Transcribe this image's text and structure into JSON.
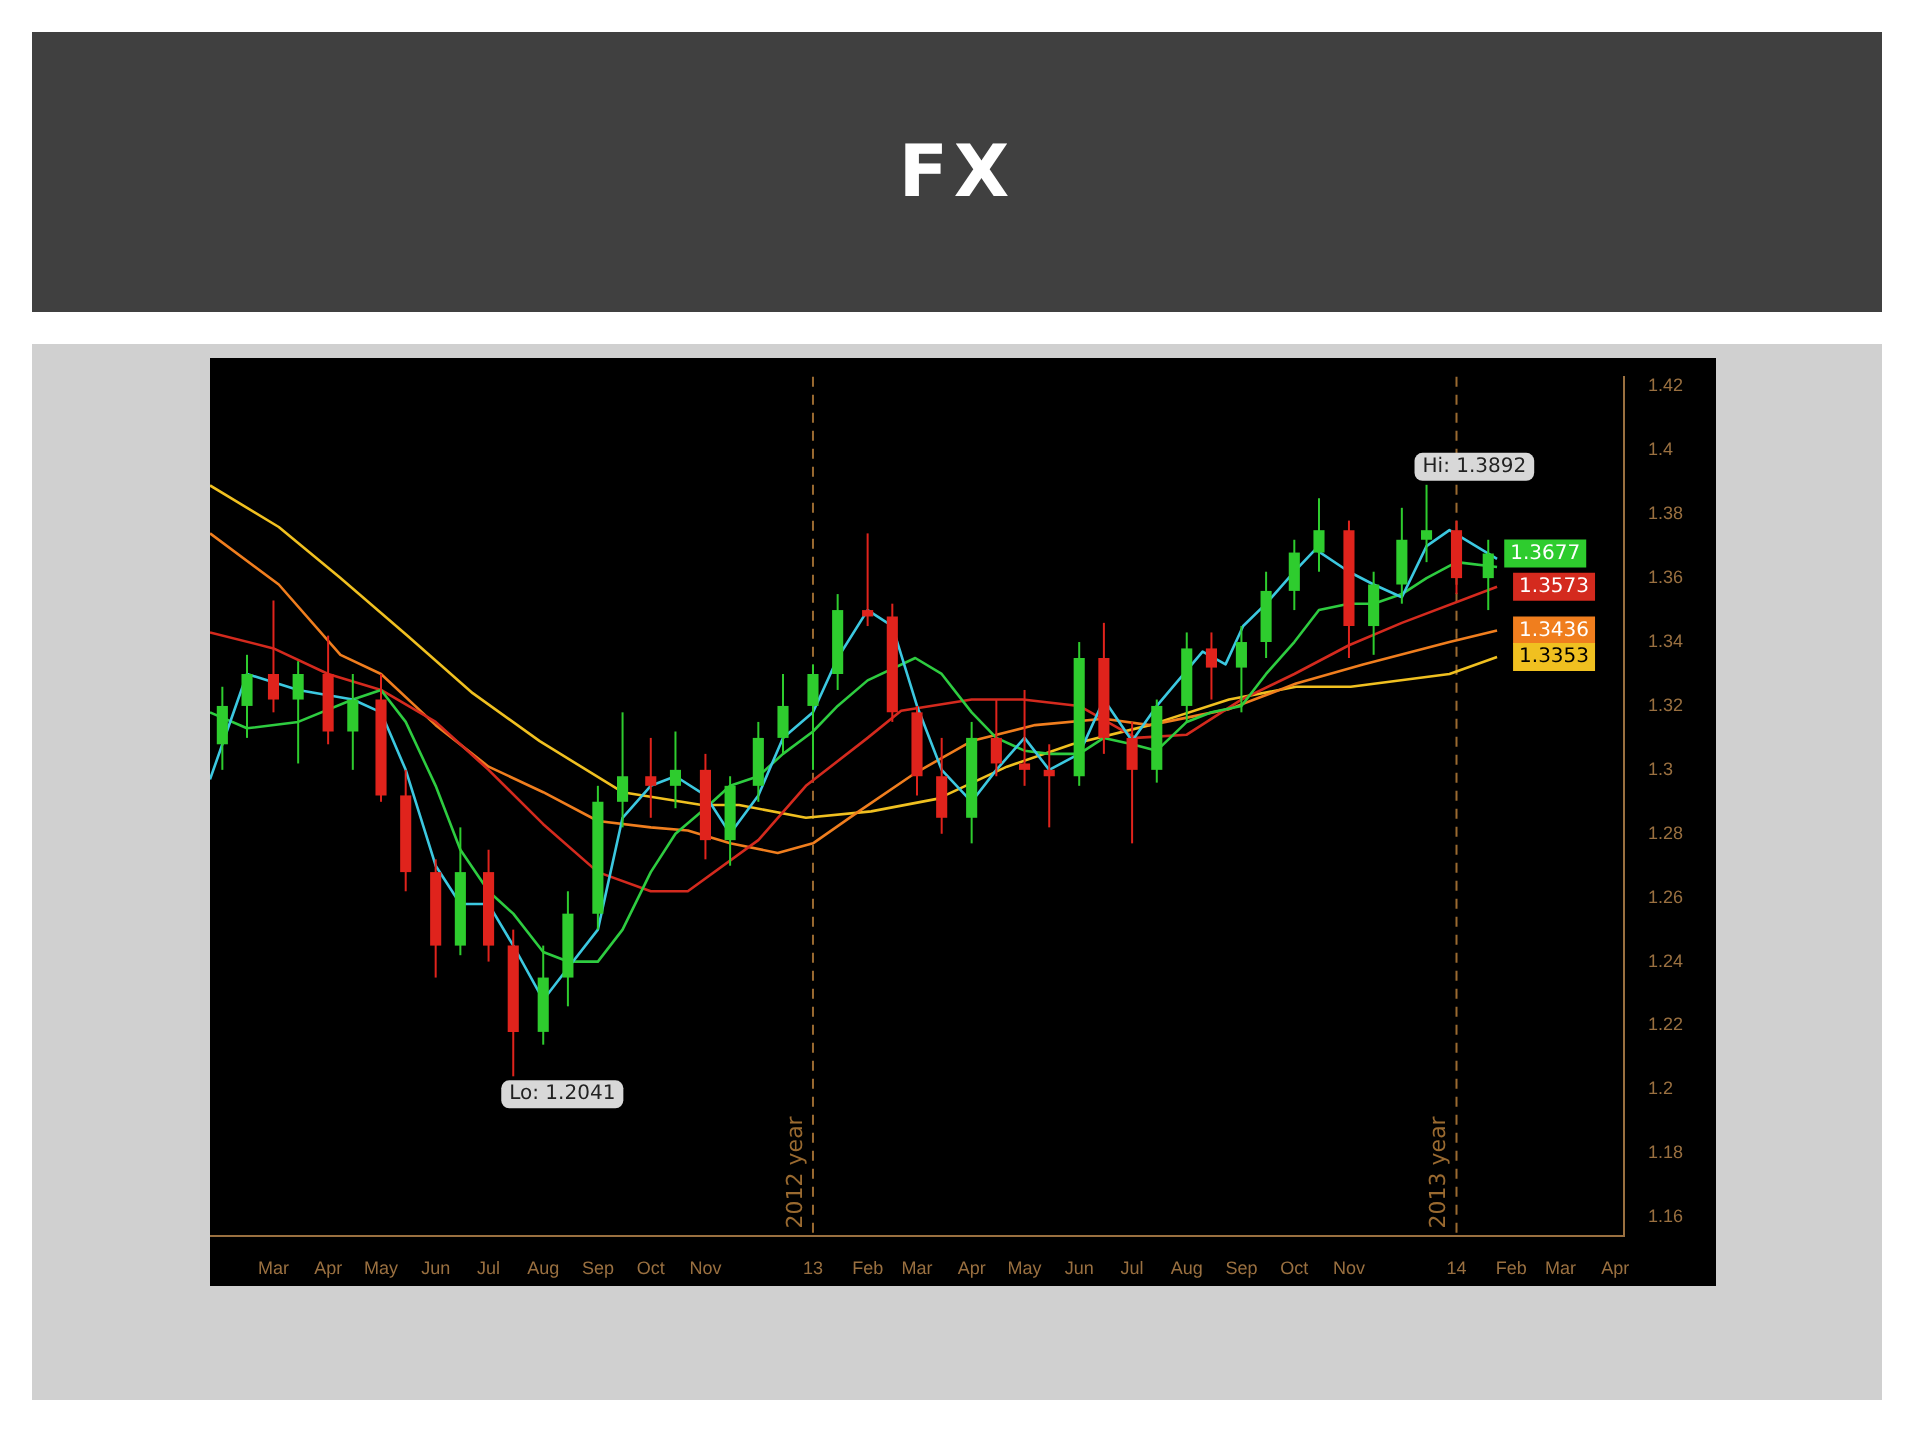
{
  "chart_data": {
    "type": "candlestick",
    "title": "FX",
    "series": [
      {
        "type": "candlestick",
        "x": [
          "2012-02-01",
          "2012-02-15",
          "2012-03-01",
          "2012-03-15",
          "2012-04-01",
          "2012-04-15",
          "2012-05-01",
          "2012-05-15",
          "2012-06-01",
          "2012-06-15",
          "2012-07-01",
          "2012-07-15",
          "2012-08-01",
          "2012-08-15",
          "2012-09-01",
          "2012-09-15",
          "2012-10-01",
          "2012-10-15",
          "2012-11-01",
          "2012-11-15",
          "2012-12-01",
          "2012-12-15",
          "2013-01-01",
          "2013-01-15",
          "2013-02-01",
          "2013-02-15",
          "2013-03-01",
          "2013-03-15",
          "2013-04-01",
          "2013-04-15",
          "2013-05-01",
          "2013-05-15",
          "2013-06-01",
          "2013-06-15",
          "2013-07-01",
          "2013-07-15",
          "2013-08-01",
          "2013-08-15",
          "2013-09-01",
          "2013-09-15",
          "2013-10-01",
          "2013-10-15",
          "2013-11-01",
          "2013-11-15",
          "2013-12-01",
          "2013-12-15",
          "2014-01-01",
          "2014-01-19"
        ],
        "ohlc": [
          [
            1.308,
            1.326,
            1.3,
            1.32
          ],
          [
            1.32,
            1.336,
            1.31,
            1.33
          ],
          [
            1.33,
            1.353,
            1.318,
            1.322
          ],
          [
            1.322,
            1.334,
            1.302,
            1.33
          ],
          [
            1.33,
            1.342,
            1.308,
            1.312
          ],
          [
            1.312,
            1.33,
            1.3,
            1.322
          ],
          [
            1.322,
            1.33,
            1.29,
            1.292
          ],
          [
            1.292,
            1.3,
            1.262,
            1.268
          ],
          [
            1.268,
            1.272,
            1.235,
            1.245
          ],
          [
            1.245,
            1.282,
            1.242,
            1.268
          ],
          [
            1.268,
            1.275,
            1.24,
            1.245
          ],
          [
            1.245,
            1.25,
            1.2041,
            1.218
          ],
          [
            1.218,
            1.245,
            1.214,
            1.235
          ],
          [
            1.235,
            1.262,
            1.226,
            1.255
          ],
          [
            1.255,
            1.295,
            1.25,
            1.29
          ],
          [
            1.29,
            1.318,
            1.282,
            1.298
          ],
          [
            1.298,
            1.31,
            1.285,
            1.295
          ],
          [
            1.295,
            1.312,
            1.288,
            1.3
          ],
          [
            1.3,
            1.305,
            1.272,
            1.278
          ],
          [
            1.278,
            1.298,
            1.27,
            1.295
          ],
          [
            1.295,
            1.315,
            1.29,
            1.31
          ],
          [
            1.31,
            1.33,
            1.305,
            1.32
          ],
          [
            1.32,
            1.333,
            1.3,
            1.33
          ],
          [
            1.33,
            1.355,
            1.325,
            1.35
          ],
          [
            1.35,
            1.374,
            1.345,
            1.348
          ],
          [
            1.348,
            1.352,
            1.315,
            1.318
          ],
          [
            1.318,
            1.32,
            1.292,
            1.298
          ],
          [
            1.298,
            1.31,
            1.28,
            1.285
          ],
          [
            1.285,
            1.315,
            1.277,
            1.31
          ],
          [
            1.31,
            1.322,
            1.298,
            1.302
          ],
          [
            1.302,
            1.325,
            1.295,
            1.3
          ],
          [
            1.3,
            1.308,
            1.282,
            1.298
          ],
          [
            1.298,
            1.34,
            1.295,
            1.335
          ],
          [
            1.335,
            1.346,
            1.305,
            1.31
          ],
          [
            1.31,
            1.315,
            1.277,
            1.3
          ],
          [
            1.3,
            1.322,
            1.296,
            1.32
          ],
          [
            1.32,
            1.343,
            1.315,
            1.338
          ],
          [
            1.338,
            1.343,
            1.322,
            1.332
          ],
          [
            1.332,
            1.345,
            1.318,
            1.34
          ],
          [
            1.34,
            1.362,
            1.335,
            1.356
          ],
          [
            1.356,
            1.372,
            1.35,
            1.368
          ],
          [
            1.368,
            1.385,
            1.362,
            1.375
          ],
          [
            1.375,
            1.378,
            1.335,
            1.345
          ],
          [
            1.345,
            1.362,
            1.336,
            1.358
          ],
          [
            1.358,
            1.382,
            1.352,
            1.372
          ],
          [
            1.372,
            1.3892,
            1.365,
            1.375
          ],
          [
            1.375,
            1.378,
            1.355,
            1.36
          ],
          [
            1.36,
            1.372,
            1.35,
            1.3677
          ]
        ],
        "colors": [
          "#2ecc2e",
          "#2ecc2e",
          "#e0231c",
          "#2ecc2e",
          "#e0231c",
          "#2ecc2e",
          "#e0231c",
          "#e0231c",
          "#e0231c",
          "#2ecc2e",
          "#e0231c",
          "#e0231c",
          "#2ecc2e",
          "#2ecc2e",
          "#2ecc2e",
          "#2ecc2e",
          "#e0231c",
          "#2ecc2e",
          "#e0231c",
          "#2ecc2e",
          "#2ecc2e",
          "#2ecc2e",
          "#2ecc2e",
          "#2ecc2e",
          "#e0231c",
          "#e0231c",
          "#e0231c",
          "#e0231c",
          "#2ecc2e",
          "#e0231c",
          "#e0231c",
          "#e0231c",
          "#2ecc2e",
          "#e0231c",
          "#e0231c",
          "#2ecc2e",
          "#2ecc2e",
          "#e0231c",
          "#2ecc2e",
          "#2ecc2e",
          "#2ecc2e",
          "#2ecc2e",
          "#e0231c",
          "#2ecc2e",
          "#2ecc2e",
          "#2ecc2e",
          "#e0231c",
          "#2ecc2e"
        ],
        "value_labels": [
          null,
          null,
          null,
          null,
          null,
          null,
          null,
          null,
          null,
          null,
          null,
          null,
          null,
          null,
          null,
          null,
          null,
          null,
          null,
          null,
          null,
          null,
          null,
          null,
          null,
          null,
          null,
          null,
          null,
          null,
          null,
          null,
          null,
          null,
          null,
          null,
          null,
          null,
          null,
          null,
          null,
          null,
          null,
          null,
          null,
          null,
          null,
          "1.3677"
        ]
      },
      {
        "type": "line",
        "color": "#3cc8e0",
        "x": [
          "2012-01-25",
          "2012-02-15",
          "2012-03-15",
          "2012-04-15",
          "2012-05-01",
          "2012-05-15",
          "2012-06-01",
          "2012-06-15",
          "2012-07-01",
          "2012-07-15",
          "2012-08-01",
          "2012-08-15",
          "2012-09-01",
          "2012-09-15",
          "2012-10-01",
          "2012-10-15",
          "2012-11-01",
          "2012-11-15",
          "2012-12-01",
          "2012-12-15",
          "2013-01-01",
          "2013-01-15",
          "2013-02-01",
          "2013-02-15",
          "2013-03-01",
          "2013-03-15",
          "2013-04-01",
          "2013-04-15",
          "2013-05-01",
          "2013-05-15",
          "2013-06-01",
          "2013-06-15",
          "2013-07-01",
          "2013-07-15",
          "2013-08-10",
          "2013-08-23",
          "2013-09-02",
          "2013-09-15",
          "2013-10-01",
          "2013-10-13",
          "2013-11-01",
          "2013-11-15",
          "2013-12-01",
          "2013-12-15",
          "2013-12-28",
          "2014-01-24"
        ],
        "values": [
          1.297,
          1.33,
          1.325,
          1.322,
          1.318,
          1.3,
          1.27,
          1.258,
          1.258,
          1.245,
          1.228,
          1.238,
          1.25,
          1.285,
          1.295,
          1.298,
          1.292,
          1.28,
          1.292,
          1.31,
          1.318,
          1.335,
          1.35,
          1.345,
          1.32,
          1.3,
          1.29,
          1.3,
          1.31,
          1.3,
          1.305,
          1.322,
          1.309,
          1.32,
          1.337,
          1.333,
          1.345,
          1.352,
          1.362,
          1.369,
          1.362,
          1.358,
          1.354,
          1.37,
          1.375,
          1.366
        ]
      },
      {
        "type": "line",
        "color": "#2ecc40",
        "x": [
          "2012-01-25",
          "2012-02-15",
          "2012-03-15",
          "2012-04-15",
          "2012-05-01",
          "2012-05-15",
          "2012-06-01",
          "2012-06-15",
          "2012-07-01",
          "2012-07-15",
          "2012-08-01",
          "2012-08-15",
          "2012-09-01",
          "2012-09-15",
          "2012-10-01",
          "2012-10-15",
          "2012-11-01",
          "2012-11-15",
          "2012-12-01",
          "2012-12-15",
          "2013-01-01",
          "2013-01-15",
          "2013-02-01",
          "2013-02-28",
          "2013-03-15",
          "2013-04-01",
          "2013-04-15",
          "2013-05-01",
          "2013-05-15",
          "2013-06-01",
          "2013-06-15",
          "2013-07-01",
          "2013-07-15",
          "2013-08-01",
          "2013-08-15",
          "2013-09-01",
          "2013-09-15",
          "2013-10-01",
          "2013-10-15",
          "2013-11-01",
          "2013-11-15",
          "2013-12-01",
          "2013-12-15",
          "2014-01-01",
          "2014-01-24"
        ],
        "values": [
          1.318,
          1.313,
          1.315,
          1.322,
          1.325,
          1.315,
          1.295,
          1.275,
          1.262,
          1.255,
          1.243,
          1.24,
          1.24,
          1.25,
          1.268,
          1.28,
          1.288,
          1.295,
          1.298,
          1.305,
          1.312,
          1.32,
          1.328,
          1.335,
          1.33,
          1.318,
          1.31,
          1.306,
          1.305,
          1.305,
          1.31,
          1.308,
          1.306,
          1.315,
          1.318,
          1.32,
          1.33,
          1.34,
          1.35,
          1.352,
          1.352,
          1.355,
          1.36,
          1.365,
          1.3635
        ]
      },
      {
        "type": "line",
        "color": "#d42a1e",
        "x": [
          "2012-01-25",
          "2012-03-01",
          "2012-04-01",
          "2012-05-01",
          "2012-06-01",
          "2012-07-01",
          "2012-08-01",
          "2012-09-01",
          "2012-10-01",
          "2012-10-22",
          "2012-12-01",
          "2012-12-28",
          "2013-02-01",
          "2013-02-20",
          "2013-04-01",
          "2013-04-30",
          "2013-06-01",
          "2013-07-03",
          "2013-08-01",
          "2013-09-01",
          "2013-10-01",
          "2013-11-01",
          "2013-12-01",
          "2014-01-24"
        ],
        "values": [
          1.343,
          1.338,
          1.33,
          1.325,
          1.315,
          1.3,
          1.283,
          1.268,
          1.262,
          1.262,
          1.278,
          1.295,
          1.31,
          1.3185,
          1.322,
          1.322,
          1.32,
          1.31,
          1.311,
          1.322,
          1.33,
          1.339,
          1.346,
          1.3573
        ],
        "value_labels": [
          null,
          null,
          null,
          null,
          null,
          null,
          null,
          null,
          null,
          null,
          null,
          null,
          null,
          null,
          null,
          null,
          null,
          null,
          null,
          null,
          null,
          null,
          null,
          "1.3573"
        ]
      },
      {
        "type": "line",
        "color": "#f07e1e",
        "x": [
          "2012-01-25",
          "2012-03-04",
          "2012-04-08",
          "2012-05-01",
          "2012-06-01",
          "2012-07-01",
          "2012-08-01",
          "2012-09-01",
          "2012-10-01",
          "2012-10-22",
          "2012-11-15",
          "2012-12-12",
          "2013-01-01",
          "2013-01-27",
          "2013-02-28",
          "2013-04-01",
          "2013-05-07",
          "2013-06-15",
          "2013-07-11",
          "2013-08-25",
          "2013-10-02",
          "2013-11-09",
          "2013-12-28",
          "2014-01-24"
        ],
        "values": [
          1.374,
          1.358,
          1.336,
          1.33,
          1.314,
          1.301,
          1.293,
          1.284,
          1.282,
          1.281,
          1.277,
          1.274,
          1.277,
          1.287,
          1.299,
          1.309,
          1.314,
          1.316,
          1.314,
          1.319,
          1.327,
          1.333,
          1.34,
          1.3436
        ],
        "value_labels": [
          null,
          null,
          null,
          null,
          null,
          null,
          null,
          null,
          null,
          null,
          null,
          null,
          null,
          null,
          null,
          null,
          null,
          null,
          null,
          null,
          null,
          null,
          null,
          "1.3436"
        ]
      },
      {
        "type": "line",
        "color": "#f0c020",
        "x": [
          "2012-01-25",
          "2012-03-04",
          "2012-04-08",
          "2012-05-16",
          "2012-06-22",
          "2012-07-30",
          "2012-09-15",
          "2012-10-30",
          "2012-11-20",
          "2012-12-28",
          "2013-02-03",
          "2013-03-13",
          "2013-04-21",
          "2013-05-28",
          "2013-07-11",
          "2013-08-25",
          "2013-10-02",
          "2013-11-02",
          "2013-12-28",
          "2014-01-24"
        ],
        "values": [
          1.389,
          1.376,
          1.36,
          1.342,
          1.324,
          1.309,
          1.293,
          1.289,
          1.289,
          1.285,
          1.287,
          1.291,
          1.301,
          1.308,
          1.314,
          1.322,
          1.326,
          1.326,
          1.33,
          1.3353
        ],
        "value_labels": [
          null,
          null,
          null,
          null,
          null,
          null,
          null,
          null,
          null,
          null,
          null,
          null,
          null,
          null,
          null,
          null,
          null,
          null,
          null,
          "1.3353"
        ]
      }
    ],
    "xlim": [
      "2012-01-25",
      "2014-04-06"
    ],
    "xticks": [
      {
        "value": "2012-03-01",
        "label": "Mar"
      },
      {
        "value": "2012-04-01",
        "label": "Apr"
      },
      {
        "value": "2012-05-01",
        "label": "May"
      },
      {
        "value": "2012-06-01",
        "label": "Jun"
      },
      {
        "value": "2012-07-01",
        "label": "Jul"
      },
      {
        "value": "2012-08-01",
        "label": "Aug"
      },
      {
        "value": "2012-09-01",
        "label": "Sep"
      },
      {
        "value": "2012-10-01",
        "label": "Oct"
      },
      {
        "value": "2012-11-01",
        "label": "Nov"
      },
      {
        "value": "2013-01-01",
        "label": "13"
      },
      {
        "value": "2013-02-01",
        "label": "Feb"
      },
      {
        "value": "2013-03-01",
        "label": "Mar"
      },
      {
        "value": "2013-04-01",
        "label": "Apr"
      },
      {
        "value": "2013-05-01",
        "label": "May"
      },
      {
        "value": "2013-06-01",
        "label": "Jun"
      },
      {
        "value": "2013-07-01",
        "label": "Jul"
      },
      {
        "value": "2013-08-01",
        "label": "Aug"
      },
      {
        "value": "2013-09-01",
        "label": "Sep"
      },
      {
        "value": "2013-10-01",
        "label": "Oct"
      },
      {
        "value": "2013-11-01",
        "label": "Nov"
      },
      {
        "value": "2014-01-01",
        "label": "14"
      },
      {
        "value": "2014-02-01",
        "label": "Feb"
      },
      {
        "value": "2014-03-01",
        "label": "Mar"
      },
      {
        "value": "2014-04-01",
        "label": "Apr"
      }
    ],
    "ylim": [
      1.154,
      1.423
    ],
    "yticks": [
      1.16,
      1.18,
      1.2,
      1.22,
      1.24,
      1.26,
      1.28,
      1.3,
      1.32,
      1.34,
      1.36,
      1.38,
      1.4,
      1.42
    ],
    "ref_lines": [
      {
        "axis": "x",
        "value": "2013-01-01",
        "label": "2012 year",
        "color": "#9a6a30",
        "line_style": "dashed"
      },
      {
        "axis": "x",
        "value": "2014-01-01",
        "label": "2013 year",
        "color": "#9a6a30",
        "line_style": "dashed"
      }
    ],
    "annotations": [
      {
        "text": "Hi: 1.3892",
        "x": "2013-12-15",
        "y": 1.3892
      },
      {
        "text": "Lo: 1.2041",
        "x": "2012-07-15",
        "y": 1.2041
      }
    ],
    "grid": false,
    "legend": false,
    "marker": "none",
    "line_style": "solid"
  }
}
